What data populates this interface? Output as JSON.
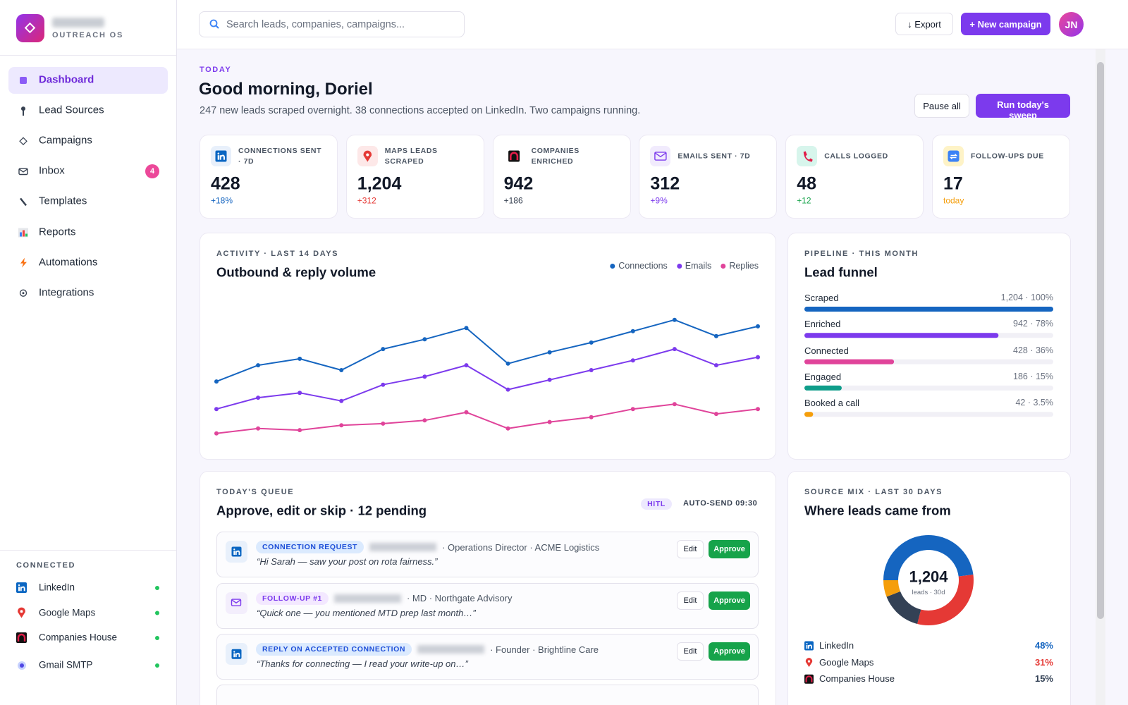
{
  "sidebar": {
    "brand_tagline": "OUTREACH OS",
    "nav": [
      {
        "label": "Dashboard"
      },
      {
        "label": "Lead Sources"
      },
      {
        "label": "Campaigns"
      },
      {
        "label": "Inbox",
        "badge": "4"
      },
      {
        "label": "Templates"
      },
      {
        "label": "Reports"
      },
      {
        "label": "Automations"
      },
      {
        "label": "Integrations"
      }
    ],
    "connected_title": "CONNECTED",
    "connected": [
      "LinkedIn",
      "Google Maps",
      "Companies House",
      "Gmail SMTP"
    ]
  },
  "topbar": {
    "search_placeholder": "Search leads, companies, campaigns...",
    "export": "↓ Export",
    "new_campaign": "+ New campaign",
    "avatar": "JN"
  },
  "greeting": {
    "eyebrow": "TODAY",
    "title": "Good morning, Doriel",
    "subtitle": "247 new leads scraped overnight. 38 connections accepted on LinkedIn. Two campaigns running.",
    "pause": "Pause all",
    "run": "Run today's sweep"
  },
  "kpis": [
    {
      "label": "CONNECTIONS SENT · 7D",
      "value": "428",
      "delta": "+18%",
      "delta_color": "#1565c0"
    },
    {
      "label": "MAPS LEADS SCRAPED",
      "value": "1,204",
      "delta": "+312",
      "delta_color": "#e53935"
    },
    {
      "label": "COMPANIES ENRICHED",
      "value": "942",
      "delta": "+186",
      "delta_color": "#374151"
    },
    {
      "label": "EMAILS SENT · 7D",
      "value": "312",
      "delta": "+9%",
      "delta_color": "#7c3aed"
    },
    {
      "label": "CALLS LOGGED",
      "value": "48",
      "delta": "+12",
      "delta_color": "#16a34a"
    },
    {
      "label": "FOLLOW-UPS DUE",
      "value": "17",
      "delta": "today",
      "delta_color": "#f59e0b"
    }
  ],
  "chart_data": [
    {
      "type": "line",
      "kicker": "ACTIVITY · LAST 14 DAYS",
      "title": "Outbound & reply volume",
      "ylim": [
        0,
        100
      ],
      "series": [
        {
          "name": "Connections",
          "color": "#1565c0",
          "values": [
            43,
            53,
            57,
            50,
            63,
            69,
            76,
            54,
            61,
            67,
            74,
            81,
            71,
            77
          ]
        },
        {
          "name": "Emails",
          "color": "#7c3aed",
          "values": [
            26,
            33,
            36,
            31,
            41,
            46,
            53,
            38,
            44,
            50,
            56,
            63,
            53,
            58
          ]
        },
        {
          "name": "Replies",
          "color": "#e0449a",
          "values": [
            11,
            14,
            13,
            16,
            17,
            19,
            24,
            14,
            18,
            21,
            26,
            29,
            23,
            26
          ]
        }
      ]
    },
    {
      "type": "bar",
      "kicker": "PIPELINE · THIS MONTH",
      "title": "Lead funnel",
      "categories": [
        "Scraped",
        "Enriched",
        "Connected",
        "Engaged",
        "Booked a call"
      ],
      "values": [
        100,
        78,
        36,
        15,
        3.5
      ],
      "value_labels": [
        "1,204 · 100%",
        "942 · 78%",
        "428 · 36%",
        "186 · 15%",
        "42 · 3.5%"
      ],
      "colors": [
        "#1565c0",
        "#7c3aed",
        "#e0449a",
        "#0f9d8a",
        "#f59e0b"
      ],
      "xlim": [
        0,
        100
      ]
    },
    {
      "type": "pie",
      "kicker": "SOURCE MIX · LAST 30 DAYS",
      "title": "Where leads came from",
      "center_value": "1,204",
      "center_label": "leads · 30d",
      "categories": [
        "LinkedIn",
        "Google Maps",
        "Companies House",
        null
      ],
      "values": [
        48,
        31,
        15,
        6
      ],
      "value_labels": [
        "48%",
        "31%",
        "15%",
        null
      ],
      "colors": [
        "#1565c0",
        "#e53935",
        "#334155",
        "#f59e0b"
      ]
    }
  ],
  "queue": {
    "kicker": "TODAY'S QUEUE",
    "title": "Approve, edit or skip · 12 pending",
    "hitl": "HITL",
    "auto_send": "AUTO-SEND 09:30",
    "items": [
      {
        "tag": "CONNECTION REQUEST",
        "meta": "· Operations Director · ACME Logistics",
        "message": "“Hi Sarah — saw your post on rota fairness.”",
        "edit": "Edit",
        "approve": "Approve"
      },
      {
        "tag": "FOLLOW-UP #1",
        "meta": "· MD · Northgate Advisory",
        "message": "“Quick one — you mentioned MTD prep last month…”",
        "edit": "Edit",
        "approve": "Approve"
      },
      {
        "tag": "REPLY ON ACCEPTED CONNECTION",
        "meta": "· Founder · Brightline Care",
        "message": "“Thanks for connecting — I read your write-up on…”",
        "edit": "Edit",
        "approve": "Approve"
      }
    ]
  }
}
